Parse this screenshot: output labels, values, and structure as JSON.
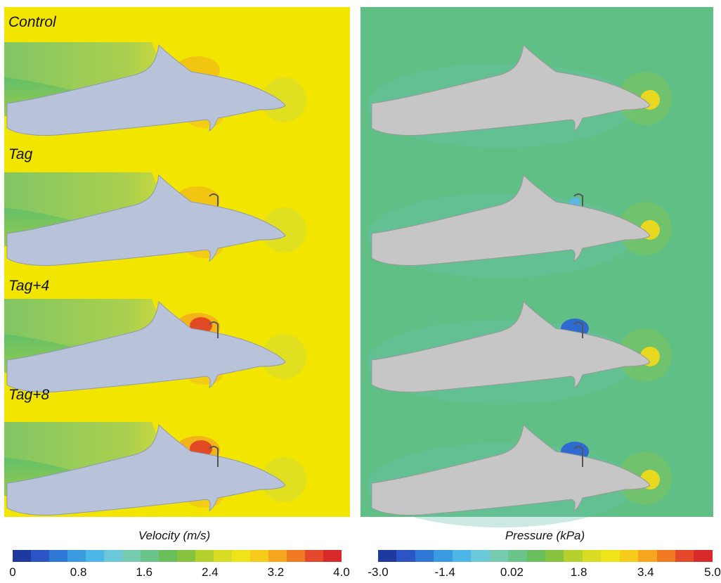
{
  "cases": [
    {
      "label": "Control"
    },
    {
      "label": "Tag"
    },
    {
      "label": "Tag+4"
    },
    {
      "label": "Tag+8"
    }
  ],
  "velocity_colorbar": {
    "title": "Velocity (m/s)",
    "ticks": [
      "0",
      "0.8",
      "1.6",
      "2.4",
      "3.2",
      "4.0"
    ]
  },
  "pressure_colorbar": {
    "title": "Pressure (kPa)",
    "ticks": [
      "-3.0",
      "-1.4",
      "0.02",
      "1.8",
      "3.4",
      "5.0"
    ]
  },
  "colors": {
    "velocity_background": "#f2e600",
    "pressure_background": "#5fbf85",
    "dolphin_velocity": "#b8c3d9",
    "dolphin_pressure": "#c6c6c6"
  }
}
